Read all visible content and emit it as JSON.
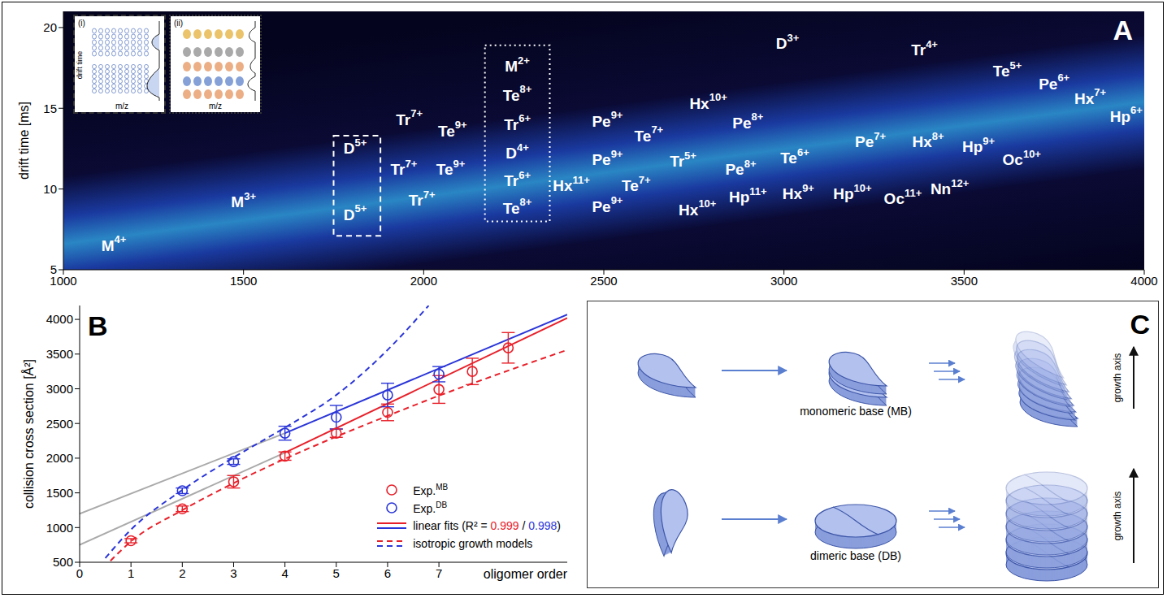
{
  "chart_data": [
    {
      "panel": "A",
      "type": "scatter",
      "y_label": "drift time [ms]",
      "xlim": [
        1000,
        4000
      ],
      "xticks": [
        1000,
        1500,
        2000,
        2500,
        3000,
        3500,
        4000
      ],
      "ylim": [
        5,
        21
      ],
      "yticks": [
        5,
        10,
        15,
        20
      ],
      "grid": false,
      "data_labels": true,
      "color": "#ffffff",
      "annotations": [
        {
          "text": "M",
          "superscript": "4+",
          "x": 1140,
          "y": 6.5
        },
        {
          "text": "M",
          "superscript": "3+",
          "x": 1500,
          "y": 9.2
        },
        {
          "text": "D",
          "superscript": "5+",
          "x": 1810,
          "y": 12.5
        },
        {
          "text": "D",
          "superscript": "5+",
          "x": 1810,
          "y": 8.4
        },
        {
          "text": "Tr",
          "superscript": "7+",
          "x": 1960,
          "y": 14.3
        },
        {
          "text": "Tr",
          "superscript": "7+",
          "x": 1945,
          "y": 11.2
        },
        {
          "text": "Tr",
          "superscript": "7+",
          "x": 1995,
          "y": 9.3
        },
        {
          "text": "Te",
          "superscript": "9+",
          "x": 2080,
          "y": 13.6
        },
        {
          "text": "Te",
          "superscript": "9+",
          "x": 2075,
          "y": 11.2
        },
        {
          "text": "M",
          "superscript": "2+",
          "x": 2260,
          "y": 17.6
        },
        {
          "text": "Te",
          "superscript": "8+",
          "x": 2260,
          "y": 15.8
        },
        {
          "text": "Tr",
          "superscript": "6+",
          "x": 2260,
          "y": 14.0
        },
        {
          "text": "D",
          "superscript": "4+",
          "x": 2260,
          "y": 12.2
        },
        {
          "text": "Tr",
          "superscript": "6+",
          "x": 2260,
          "y": 10.5
        },
        {
          "text": "Te",
          "superscript": "8+",
          "x": 2260,
          "y": 8.8
        },
        {
          "text": "Pe",
          "superscript": "9+",
          "x": 2510,
          "y": 14.2
        },
        {
          "text": "Pe",
          "superscript": "9+",
          "x": 2510,
          "y": 11.8
        },
        {
          "text": "Hx",
          "superscript": "11+",
          "x": 2410,
          "y": 10.2
        },
        {
          "text": "Pe",
          "superscript": "9+",
          "x": 2510,
          "y": 8.9
        },
        {
          "text": "Te",
          "superscript": "7+",
          "x": 2625,
          "y": 13.3
        },
        {
          "text": "Te",
          "superscript": "7+",
          "x": 2590,
          "y": 10.2
        },
        {
          "text": "Tr",
          "superscript": "5+",
          "x": 2720,
          "y": 11.7
        },
        {
          "text": "Hx",
          "superscript": "10+",
          "x": 2790,
          "y": 15.3
        },
        {
          "text": "Pe",
          "superscript": "8+",
          "x": 2900,
          "y": 14.1
        },
        {
          "text": "Pe",
          "superscript": "8+",
          "x": 2880,
          "y": 11.2
        },
        {
          "text": "Hx",
          "superscript": "10+",
          "x": 2760,
          "y": 8.7
        },
        {
          "text": "Hp",
          "superscript": "11+",
          "x": 2900,
          "y": 9.5
        },
        {
          "text": "Hx",
          "superscript": "9+",
          "x": 3040,
          "y": 9.7
        },
        {
          "text": "D",
          "superscript": "3+",
          "x": 3010,
          "y": 19.0
        },
        {
          "text": "Te",
          "superscript": "6+",
          "x": 3030,
          "y": 11.9
        },
        {
          "text": "Hp",
          "superscript": "10+",
          "x": 3190,
          "y": 9.7
        },
        {
          "text": "Oc",
          "superscript": "11+",
          "x": 3330,
          "y": 9.4
        },
        {
          "text": "Nn",
          "superscript": "12+",
          "x": 3460,
          "y": 10.0
        },
        {
          "text": "Pe",
          "superscript": "7+",
          "x": 3240,
          "y": 12.9
        },
        {
          "text": "Hx",
          "superscript": "8+",
          "x": 3400,
          "y": 12.9
        },
        {
          "text": "Hp",
          "superscript": "9+",
          "x": 3540,
          "y": 12.6
        },
        {
          "text": "Oc",
          "superscript": "10+",
          "x": 3660,
          "y": 11.8
        },
        {
          "text": "Tr",
          "superscript": "4+",
          "x": 3390,
          "y": 18.6
        },
        {
          "text": "Te",
          "superscript": "5+",
          "x": 3620,
          "y": 17.3
        },
        {
          "text": "Pe",
          "superscript": "6+",
          "x": 3750,
          "y": 16.5
        },
        {
          "text": "Hx",
          "superscript": "7+",
          "x": 3850,
          "y": 15.6
        },
        {
          "text": "Hp",
          "superscript": "6+",
          "x": 3950,
          "y": 14.5
        }
      ],
      "boxes": [
        {
          "x": [
            1750,
            1880
          ],
          "y": [
            7.1,
            13.3
          ],
          "line_style": "dashed"
        },
        {
          "x": [
            2170,
            2350
          ],
          "y": [
            8.0,
            18.9
          ],
          "line_style": "dotted"
        }
      ],
      "insets": [
        {
          "label": "(i)",
          "x_label": "m/z",
          "y_label": "drift time",
          "line_style": "dashed"
        },
        {
          "label": "(ii)",
          "x_label": "m/z",
          "line_style": "dotted"
        }
      ]
    },
    {
      "panel": "B",
      "type": "scatter",
      "x_label": "oligomer order",
      "y_label": "collision cross section [Å²]",
      "xlim": [
        0,
        9.5
      ],
      "xticks": [
        0,
        1,
        2,
        3,
        4,
        5,
        6,
        7
      ],
      "ylim": [
        500,
        4200
      ],
      "yticks": [
        500,
        1000,
        1500,
        2000,
        2500,
        3000,
        3500,
        4000
      ],
      "legend": "bottom right",
      "series": [
        {
          "name": "Exp.",
          "superscript": "MB",
          "type": "scatter",
          "marker": "circle",
          "color": "#e8202a",
          "x": [
            1,
            2,
            3,
            4,
            5,
            6,
            7,
            7.65,
            8.35
          ],
          "values": [
            810,
            1270,
            1660,
            2030,
            2360,
            2660,
            2990,
            3250,
            3590
          ],
          "errors": [
            30,
            40,
            90,
            60,
            60,
            120,
            200,
            190,
            220
          ]
        },
        {
          "name": "Exp.",
          "superscript": "DB",
          "type": "scatter",
          "marker": "circle",
          "color": "#2a35d8",
          "x": [
            2,
            3,
            4,
            5,
            6,
            7
          ],
          "values": [
            1530,
            1950,
            2360,
            2590,
            2910,
            3210
          ],
          "errors": [
            40,
            40,
            100,
            170,
            170,
            110
          ]
        }
      ],
      "fits": {
        "name": "linear fits (R² = 0.999 / 0.998)",
        "type": "line",
        "line_style": "solid",
        "lines": [
          {
            "color": "#e8202a",
            "x": [
              4,
              9.5
            ],
            "values": [
              2080,
              4020
            ]
          },
          {
            "color": "#2a35d8",
            "x": [
              4,
              9.5
            ],
            "values": [
              2360,
              4070
            ]
          }
        ],
        "extensions": {
          "color": "#aaaaaa",
          "lines": [
            {
              "x": [
                0,
                4
              ],
              "values": [
                750,
                2080
              ]
            },
            {
              "x": [
                0,
                4
              ],
              "values": [
                1200,
                2360
              ]
            }
          ]
        }
      },
      "models": {
        "name": "isotropic growth models",
        "type": "line",
        "line_style": "dashed",
        "lines": [
          {
            "color": "#e8202a",
            "x": [
              0.6,
              1,
              2,
              3,
              4,
              5,
              6,
              7,
              8,
              9.5
            ],
            "values": [
              520,
              800,
              1250,
              1640,
              1990,
              2310,
              2610,
              2900,
              3170,
              3560
            ]
          },
          {
            "color": "#2a35d8",
            "x": [
              0.5,
              1,
              2,
              3,
              4,
              5,
              6,
              6.8
            ],
            "values": [
              560,
              970,
              1540,
              2010,
              2440,
              2910,
              3560,
              4200
            ]
          }
        ]
      }
    }
  ],
  "diagram": {
    "panel": "C",
    "rows": [
      {
        "label": "monomeric base (MB)",
        "axis_label": "growth axis"
      },
      {
        "label": "dimeric base (DB)",
        "axis_label": "growth axis"
      }
    ]
  }
}
